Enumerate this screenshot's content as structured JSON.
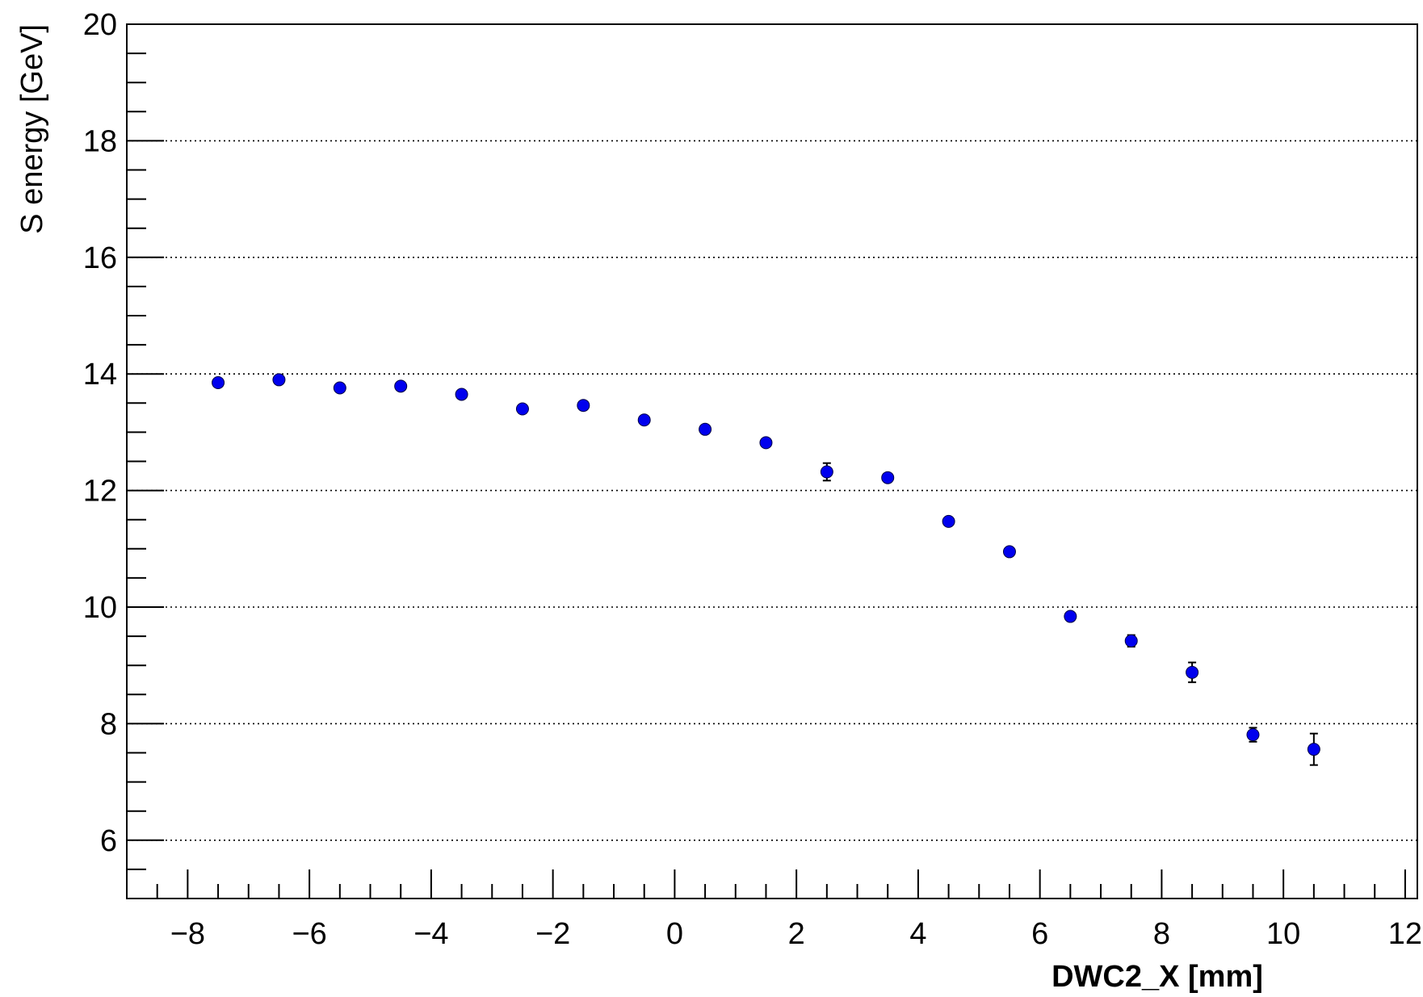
{
  "chart_data": {
    "type": "scatter",
    "xlabel": "DWC2_X [mm]",
    "ylabel": "S energy [GeV]",
    "xlim": [
      -9.0,
      12.2
    ],
    "ylim": [
      5.0,
      20.0
    ],
    "x_major_ticks": [
      -8,
      -6,
      -4,
      -2,
      0,
      2,
      4,
      6,
      8,
      10,
      12
    ],
    "x_tick_labels": [
      "−8",
      "−6",
      "−4",
      "−2",
      "0",
      "2",
      "4",
      "6",
      "8",
      "10",
      "12"
    ],
    "y_major_ticks": [
      6,
      8,
      10,
      12,
      14,
      16,
      18,
      20
    ],
    "y_tick_labels": [
      "6",
      "8",
      "10",
      "12",
      "14",
      "16",
      "18",
      "20"
    ],
    "grid": "horizontal dotted",
    "marker_color": "#0000ee",
    "series": [
      {
        "x": [
          -7.5,
          -6.5,
          -5.5,
          -4.5,
          -3.5,
          -2.5,
          -1.5,
          -0.5,
          0.5,
          1.5,
          2.5,
          3.5,
          4.5,
          5.5,
          6.5,
          7.5,
          8.5,
          9.5,
          10.5
        ],
        "y": [
          13.85,
          13.9,
          13.76,
          13.79,
          13.65,
          13.4,
          13.46,
          13.21,
          13.05,
          12.82,
          12.32,
          12.22,
          11.47,
          10.95,
          9.84,
          9.42,
          8.88,
          7.81,
          7.56
        ],
        "yerr": [
          0.07,
          0.06,
          0.06,
          0.06,
          0.06,
          0.06,
          0.06,
          0.06,
          0.07,
          0.07,
          0.15,
          0.07,
          0.07,
          0.07,
          0.07,
          0.1,
          0.17,
          0.12,
          0.27
        ]
      }
    ]
  }
}
